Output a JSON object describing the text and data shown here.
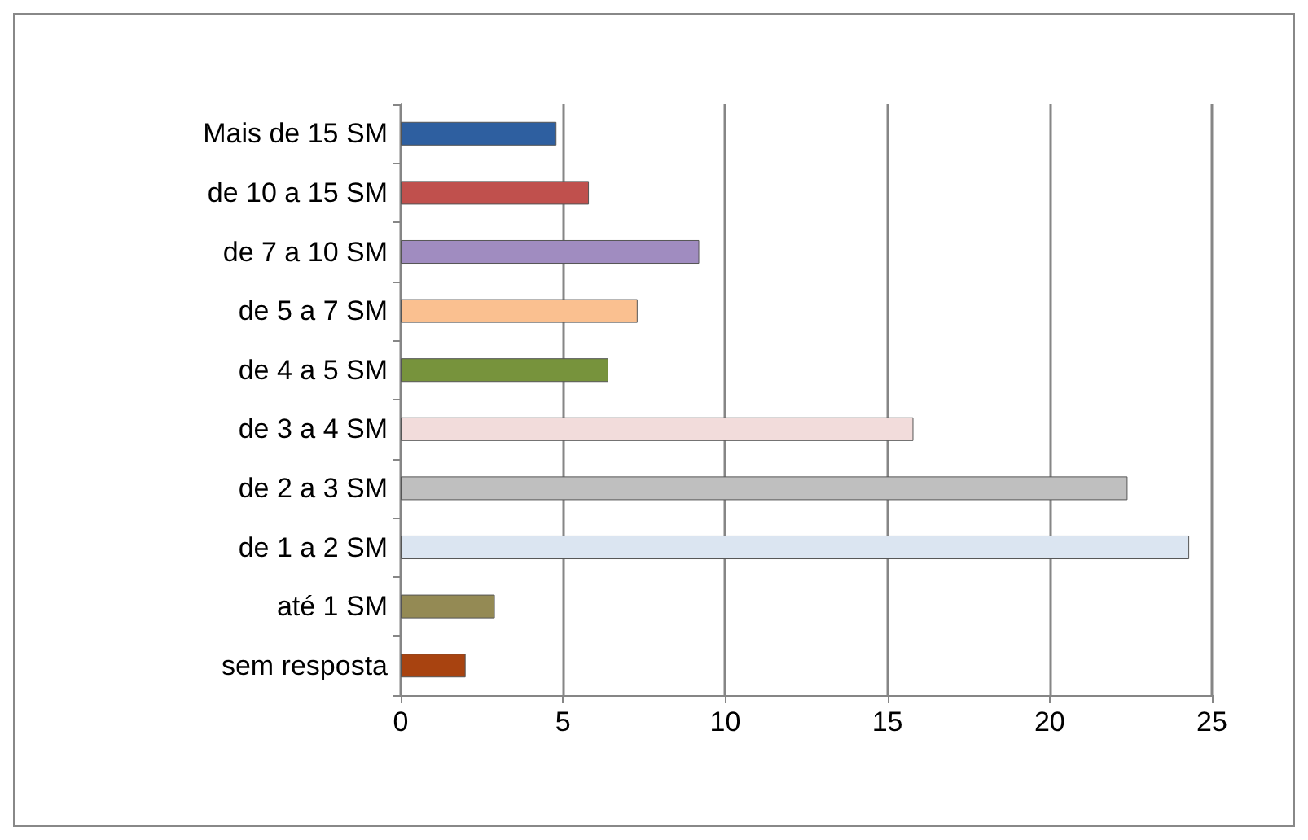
{
  "chart_data": {
    "type": "bar",
    "orientation": "horizontal",
    "categories": [
      "Mais de 15 SM",
      "de 10 a 15 SM",
      "de 7 a 10 SM",
      "de 5 a 7 SM",
      "de 4 a 5 SM",
      "de 3 a 4 SM",
      "de 2 a 3 SM",
      "de 1 a 2 SM",
      "até 1 SM",
      "sem resposta"
    ],
    "values": [
      4.8,
      5.8,
      9.2,
      7.3,
      6.4,
      15.8,
      22.4,
      24.3,
      2.9,
      2.0
    ],
    "colors": [
      "#2e5fa0",
      "#c0504d",
      "#a08cc0",
      "#fac090",
      "#77933c",
      "#f2dcdb",
      "#bfbfbf",
      "#dbe5f1",
      "#948a54",
      "#a84310"
    ],
    "xlim": [
      0,
      25
    ],
    "xticks": [
      0,
      5,
      10,
      15,
      20,
      25
    ],
    "grid": "x"
  }
}
